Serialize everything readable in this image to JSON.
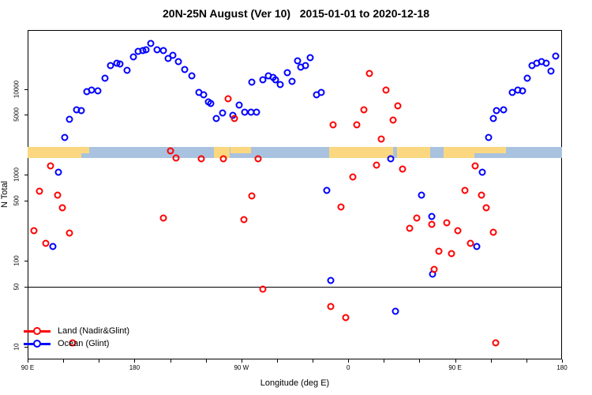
{
  "title": "20N-25N August (Ver 10)   2015-01-01 to 2020-12-18",
  "chart_data": {
    "type": "scatter",
    "title": "20N-25N August (Ver 10)   2015-01-01 to 2020-12-18",
    "xlabel": "Longitude (deg E)",
    "ylabel": "N Total",
    "y_scale": "log",
    "ylim": [
      8,
      45000
    ],
    "x_axis_span_deg": [
      0,
      450
    ],
    "x_ticks": [
      {
        "deg": 0,
        "label": "90 E"
      },
      {
        "deg": 90,
        "label": "180"
      },
      {
        "deg": 180,
        "label": "90 W"
      },
      {
        "deg": 270,
        "label": "0"
      },
      {
        "deg": 360,
        "label": "90 E"
      },
      {
        "deg": 450,
        "label": "180"
      }
    ],
    "x_minor_tick_step_deg": 30,
    "y_ticks": [
      {
        "value": 10,
        "label": "10"
      },
      {
        "value": 50,
        "label": "50"
      },
      {
        "value": 100,
        "label": "100"
      },
      {
        "value": 500,
        "label": "500"
      },
      {
        "value": 1000,
        "label": "1000"
      },
      {
        "value": 5000,
        "label": "5000"
      },
      {
        "value": 10000,
        "label": "10000"
      }
    ],
    "reference_line_n": 50,
    "map_band": {
      "n_top": 2100,
      "n_bottom": 1570,
      "ocean_color": "#a9c2df",
      "land_color": "#fbd87f",
      "land_segments_deg": [
        {
          "from": 0,
          "to": 45,
          "part": "full"
        },
        {
          "from": 45,
          "to": 52,
          "part": "top"
        },
        {
          "from": 157,
          "to": 170,
          "part": "full"
        },
        {
          "from": 171,
          "to": 188,
          "part": "top"
        },
        {
          "from": 254,
          "to": 308,
          "part": "full"
        },
        {
          "from": 311,
          "to": 339,
          "part": "full"
        },
        {
          "from": 350,
          "to": 376,
          "part": "full"
        },
        {
          "from": 376,
          "to": 403,
          "part": "top"
        }
      ]
    },
    "series": [
      {
        "name": "Land (Nadir&Glint)",
        "color": "#ff0000",
        "symbol": "open-circle",
        "points_deg_n": [
          [
            19,
            1270
          ],
          [
            10,
            644
          ],
          [
            25,
            580
          ],
          [
            29,
            413
          ],
          [
            5,
            223
          ],
          [
            15,
            159
          ],
          [
            35,
            210
          ],
          [
            114,
            314
          ],
          [
            38,
            11
          ],
          [
            120,
            1900
          ],
          [
            125,
            1570
          ],
          [
            146,
            1540
          ],
          [
            169,
            7700
          ],
          [
            174,
            4500
          ],
          [
            165,
            1540
          ],
          [
            194,
            1540
          ],
          [
            182,
            300
          ],
          [
            189,
            568
          ],
          [
            198,
            47
          ],
          [
            264,
            422
          ],
          [
            274,
            940
          ],
          [
            294,
            1300
          ],
          [
            255,
            29
          ],
          [
            268,
            22
          ],
          [
            288,
            15100
          ],
          [
            302,
            9700
          ],
          [
            312,
            6300
          ],
          [
            283,
            5700
          ],
          [
            308,
            4300
          ],
          [
            277,
            3800
          ],
          [
            257,
            3800
          ],
          [
            298,
            2600
          ],
          [
            316,
            1170
          ],
          [
            377,
            1270
          ],
          [
            368,
            660
          ],
          [
            382,
            580
          ],
          [
            386,
            413
          ],
          [
            328,
            314
          ],
          [
            340,
            265
          ],
          [
            353,
            276
          ],
          [
            322,
            238
          ],
          [
            362,
            223
          ],
          [
            392,
            214
          ],
          [
            373,
            159
          ],
          [
            346,
            129
          ],
          [
            357,
            121
          ],
          [
            342,
            79
          ],
          [
            394,
            11
          ]
        ]
      },
      {
        "name": "Ocean (Glint)",
        "color": "#0000ff",
        "symbol": "open-circle",
        "points_deg_n": [
          [
            31,
            2700
          ],
          [
            35,
            4400
          ],
          [
            41,
            5700
          ],
          [
            45,
            5600
          ],
          [
            50,
            9300
          ],
          [
            54,
            9700
          ],
          [
            59,
            9500
          ],
          [
            65,
            13300
          ],
          [
            70,
            18700
          ],
          [
            75,
            19900
          ],
          [
            78,
            19500
          ],
          [
            84,
            16500
          ],
          [
            89,
            23500
          ],
          [
            93,
            27300
          ],
          [
            97,
            27900
          ],
          [
            100,
            28500
          ],
          [
            104,
            33600
          ],
          [
            109,
            28500
          ],
          [
            114,
            27900
          ],
          [
            118,
            22700
          ],
          [
            122,
            24700
          ],
          [
            127,
            20800
          ],
          [
            132,
            16800
          ],
          [
            138,
            14200
          ],
          [
            144,
            9100
          ],
          [
            148,
            8500
          ],
          [
            152,
            7100
          ],
          [
            154,
            6800
          ],
          [
            159,
            4500
          ],
          [
            164,
            5200
          ],
          [
            173,
            4900
          ],
          [
            178,
            6500
          ],
          [
            183,
            5400
          ],
          [
            188,
            5300
          ],
          [
            193,
            5300
          ],
          [
            189,
            12000
          ],
          [
            198,
            12700
          ],
          [
            203,
            14200
          ],
          [
            207,
            13600
          ],
          [
            209,
            12700
          ],
          [
            213,
            11200
          ],
          [
            219,
            15400
          ],
          [
            223,
            12200
          ],
          [
            227,
            21200
          ],
          [
            230,
            17900
          ],
          [
            234,
            18700
          ],
          [
            238,
            23200
          ],
          [
            243,
            8500
          ],
          [
            247,
            9100
          ],
          [
            252,
            660
          ],
          [
            255,
            59
          ],
          [
            306,
            1540
          ],
          [
            383,
            1070
          ],
          [
            332,
            580
          ],
          [
            340,
            327
          ],
          [
            378,
            146
          ],
          [
            341,
            70
          ],
          [
            310,
            26
          ],
          [
            388,
            2700
          ],
          [
            392,
            4500
          ],
          [
            395,
            5600
          ],
          [
            401,
            5700
          ],
          [
            408,
            9100
          ],
          [
            413,
            9700
          ],
          [
            417,
            9500
          ],
          [
            421,
            13200
          ],
          [
            425,
            18700
          ],
          [
            429,
            19900
          ],
          [
            433,
            20800
          ],
          [
            437,
            19900
          ],
          [
            441,
            16100
          ],
          [
            445,
            24200
          ],
          [
            26,
            1070
          ],
          [
            21,
            146
          ]
        ]
      }
    ],
    "legend_position": "bottom-left",
    "grid": false
  },
  "legend": {
    "items": [
      {
        "label": "Land (Nadir&Glint)",
        "color": "#ff0000"
      },
      {
        "label": "Ocean (Glint)",
        "color": "#0000ff"
      }
    ]
  }
}
